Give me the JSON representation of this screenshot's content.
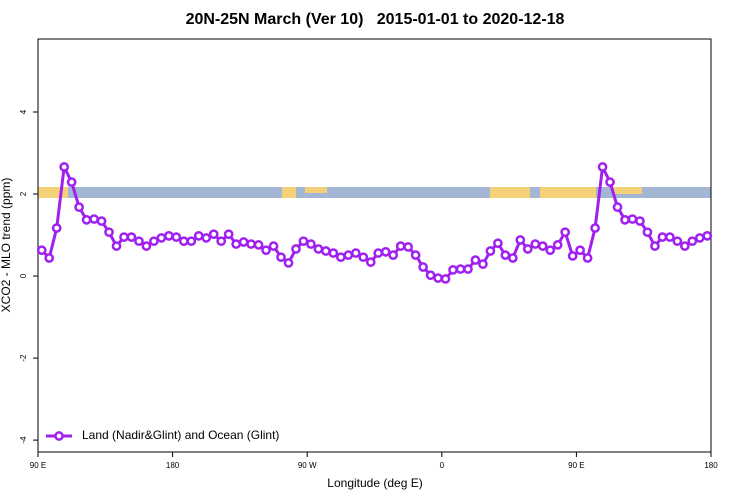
{
  "chart_data": {
    "type": "line",
    "title": "20N-25N March (Ver 10)   2015-01-01 to 2020-12-18",
    "x_label": "Longitude (deg E)",
    "y_label": "XCO2 - MLO trend (ppm)",
    "xlim": [
      90,
      540
    ],
    "ylim": [
      -4.29,
      5.78
    ],
    "xticks": [
      {
        "value": 90,
        "label": "90 E"
      },
      180,
      {
        "value": 270,
        "label": "90 W"
      },
      {
        "value": 360,
        "label": "0"
      },
      {
        "value": 450,
        "label": "90 E"
      },
      {
        "value": 540,
        "label": "180"
      }
    ],
    "yticks": [
      -4,
      -2,
      0,
      2,
      4
    ],
    "legend_position": "bottom-left",
    "x": [
      92.5,
      97.5,
      102.5,
      107.5,
      112.5,
      117.5,
      122.5,
      127.5,
      132.5,
      137.5,
      142.5,
      147.5,
      152.5,
      157.5,
      162.5,
      167.5,
      172.5,
      177.5,
      182.5,
      187.5,
      192.5,
      197.5,
      202.5,
      207.5,
      212.5,
      217.5,
      222.5,
      227.5,
      232.5,
      237.5,
      242.5,
      247.5,
      252.5,
      257.5,
      262.5,
      267.5,
      272.5,
      277.5,
      282.5,
      287.5,
      292.5,
      297.5,
      302.5,
      307.5,
      312.5,
      317.5,
      322.5,
      327.5,
      332.5,
      337.5,
      342.5,
      347.5,
      352.5,
      357.5,
      362.5,
      367.5,
      372.5,
      377.5,
      382.5,
      387.5,
      392.5,
      397.5,
      402.5,
      407.5,
      412.5,
      417.5,
      422.5,
      427.5,
      432.5,
      437.5,
      442.5,
      447.5,
      452.5,
      457.5,
      462.5,
      467.5,
      472.5,
      477.5,
      482.5,
      487.5,
      492.5,
      497.5,
      502.5,
      507.5,
      512.5,
      517.5,
      522.5,
      527.5,
      532.5,
      537.5
    ],
    "series": [
      {
        "name": "Land (Nadir&Glint) and Ocean (Glint)",
        "color": "#a020f0",
        "values": [
          0.63,
          0.44,
          1.17,
          2.66,
          2.29,
          1.68,
          1.37,
          1.39,
          1.34,
          1.07,
          0.73,
          0.95,
          0.95,
          0.85,
          0.73,
          0.85,
          0.93,
          0.98,
          0.95,
          0.85,
          0.85,
          0.98,
          0.93,
          1.02,
          0.85,
          1.02,
          0.78,
          0.83,
          0.78,
          0.76,
          0.63,
          0.73,
          0.46,
          0.32,
          0.66,
          0.85,
          0.78,
          0.66,
          0.61,
          0.56,
          0.46,
          0.51,
          0.56,
          0.46,
          0.34,
          0.56,
          0.59,
          0.51,
          0.73,
          0.71,
          0.51,
          0.22,
          0.02,
          -0.05,
          -0.07,
          0.15,
          0.17,
          0.17,
          0.39,
          0.29,
          0.61,
          0.8,
          0.51,
          0.44,
          0.88,
          0.66,
          0.78,
          0.73,
          0.63,
          0.76,
          1.07,
          0.49,
          0.63,
          0.44,
          1.17,
          2.66,
          2.29,
          1.68,
          1.37,
          1.39,
          1.34,
          1.07,
          0.73,
          0.95,
          0.95,
          0.85,
          0.73,
          0.85,
          0.93,
          0.98
        ]
      }
    ]
  }
}
